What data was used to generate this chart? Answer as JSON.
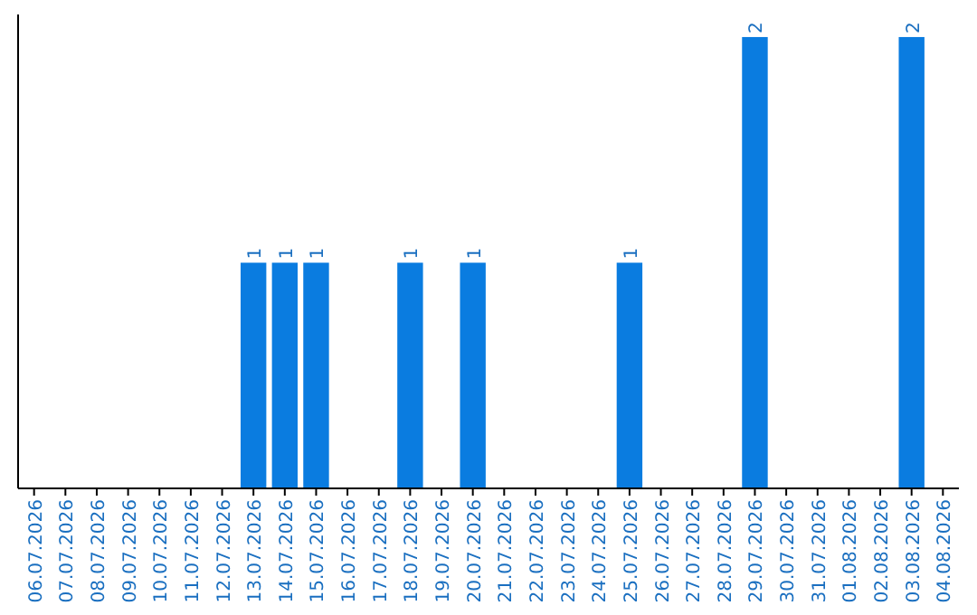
{
  "chart_data": {
    "type": "bar",
    "categories": [
      "06.07.2026",
      "07.07.2026",
      "08.07.2026",
      "09.07.2026",
      "10.07.2026",
      "11.07.2026",
      "12.07.2026",
      "13.07.2026",
      "14.07.2026",
      "15.07.2026",
      "16.07.2026",
      "17.07.2026",
      "18.07.2026",
      "19.07.2026",
      "20.07.2026",
      "21.07.2026",
      "22.07.2026",
      "23.07.2026",
      "24.07.2026",
      "25.07.2026",
      "26.07.2026",
      "27.07.2026",
      "28.07.2026",
      "29.07.2026",
      "30.07.2026",
      "31.07.2026",
      "01.08.2026",
      "02.08.2026",
      "03.08.2026",
      "04.08.2026"
    ],
    "values": [
      0,
      0,
      0,
      0,
      0,
      0,
      0,
      1,
      1,
      1,
      0,
      0,
      1,
      0,
      1,
      0,
      0,
      0,
      0,
      1,
      0,
      0,
      0,
      2,
      0,
      0,
      0,
      0,
      2,
      0
    ],
    "value_labels": [
      null,
      null,
      null,
      null,
      null,
      null,
      null,
      "1",
      "1",
      "1",
      null,
      null,
      "1",
      null,
      "1",
      null,
      null,
      null,
      null,
      "1",
      null,
      null,
      null,
      "2",
      null,
      null,
      null,
      null,
      "2",
      null
    ],
    "color": "#0a7ce0"
  }
}
